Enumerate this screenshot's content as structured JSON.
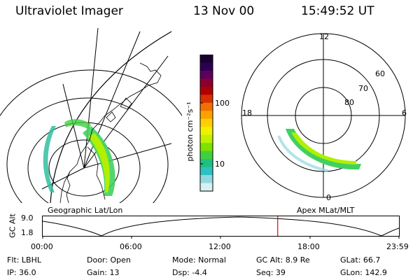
{
  "header": {
    "instrument": "Ultraviolet Imager",
    "date": "13 Nov 00",
    "time": "15:49:52 UT"
  },
  "colorbar": {
    "unit_label": "photon cm⁻²s⁻¹",
    "ticks": [
      "100",
      "10"
    ],
    "colors": [
      "#1a0033",
      "#2b0050",
      "#5c0060",
      "#8a0030",
      "#b00000",
      "#d83000",
      "#f07000",
      "#ffa000",
      "#ffd000",
      "#f0f000",
      "#c0f000",
      "#80e000",
      "#40d040",
      "#20c080",
      "#30c0c0",
      "#90d8e0",
      "#d8f0f0"
    ]
  },
  "map_labels": {
    "left": "Geographic Lat/Lon",
    "right": "Apex MLat/MLT"
  },
  "polar": {
    "mlt_labels": [
      "12",
      "18",
      "6",
      "0"
    ],
    "mlat_labels": [
      "60",
      "70",
      "80"
    ]
  },
  "timeline": {
    "axis_label": "GC Alt",
    "y_ticks": [
      "9.0",
      "1.8"
    ],
    "x_ticks": [
      "00:00",
      "06:00",
      "12:00",
      "18:00",
      "23:59"
    ],
    "marker_time_hours": 15.83,
    "marker_color": "#e00000"
  },
  "info": {
    "flt": "Flt: LBHL",
    "ip": "IP: 36.0",
    "door": "Door: Open",
    "gain": "Gain: 13",
    "mode": "Mode: Normal",
    "dsp": "Dsp:   -4.4",
    "gc_alt": "GC Alt: 8.9 Re",
    "seq": "Seq: 39",
    "glat": "GLat:  66.7",
    "glon": "GLon: 142.9"
  }
}
